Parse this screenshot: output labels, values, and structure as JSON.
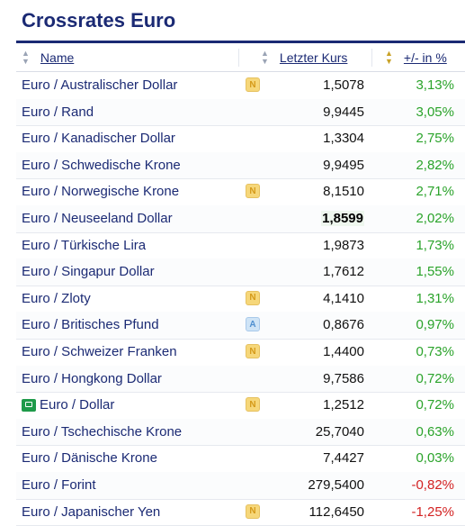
{
  "title": "Crossrates Euro",
  "header": {
    "name": "Name",
    "price": "Letzter Kurs",
    "change": "+/- in %"
  },
  "colors": {
    "positive": "#2aa32a",
    "negative": "#d32222",
    "title": "#1b2a74"
  },
  "rows": [
    {
      "name": "Euro / Australischer Dollar",
      "badge": "N",
      "price": "1,5078",
      "change": "3,13%",
      "dir": "up"
    },
    {
      "name": "Euro / Rand",
      "badge": "",
      "price": "9,9445",
      "change": "3,05%",
      "dir": "up"
    },
    {
      "name": "Euro / Kanadischer Dollar",
      "badge": "",
      "price": "1,3304",
      "change": "2,75%",
      "dir": "up"
    },
    {
      "name": "Euro / Schwedische Krone",
      "badge": "",
      "price": "9,9495",
      "change": "2,82%",
      "dir": "up"
    },
    {
      "name": "Euro / Norwegische Krone",
      "badge": "N",
      "price": "8,1510",
      "change": "2,71%",
      "dir": "up"
    },
    {
      "name": "Euro / Neuseeland Dollar",
      "badge": "",
      "price": "1,8599",
      "change": "2,02%",
      "dir": "up",
      "highlight": true
    },
    {
      "name": "Euro / Türkische Lira",
      "badge": "",
      "price": "1,9873",
      "change": "1,73%",
      "dir": "up"
    },
    {
      "name": "Euro / Singapur Dollar",
      "badge": "",
      "price": "1,7612",
      "change": "1,55%",
      "dir": "up"
    },
    {
      "name": "Euro / Zloty",
      "badge": "N",
      "price": "4,1410",
      "change": "1,31%",
      "dir": "up"
    },
    {
      "name": "Euro / Britisches Pfund",
      "badge": "A",
      "price": "0,8676",
      "change": "0,97%",
      "dir": "up"
    },
    {
      "name": "Euro / Schweizer Franken",
      "badge": "N",
      "price": "1,4400",
      "change": "0,73%",
      "dir": "up"
    },
    {
      "name": "Euro / Hongkong Dollar",
      "badge": "",
      "price": "9,7586",
      "change": "0,72%",
      "dir": "up"
    },
    {
      "name": "Euro / Dollar",
      "badge": "N",
      "price": "1,2512",
      "change": "0,72%",
      "dir": "up",
      "icon": "green-flag-icon"
    },
    {
      "name": "Euro / Tschechische Krone",
      "badge": "",
      "price": "25,7040",
      "change": "0,63%",
      "dir": "up"
    },
    {
      "name": "Euro / Dänische Krone",
      "badge": "",
      "price": "7,4427",
      "change": "0,03%",
      "dir": "up"
    },
    {
      "name": "Euro / Forint",
      "badge": "",
      "price": "279,5400",
      "change": "-0,82%",
      "dir": "down"
    },
    {
      "name": "Euro / Japanischer Yen",
      "badge": "N",
      "price": "112,6450",
      "change": "-1,25%",
      "dir": "down"
    }
  ]
}
